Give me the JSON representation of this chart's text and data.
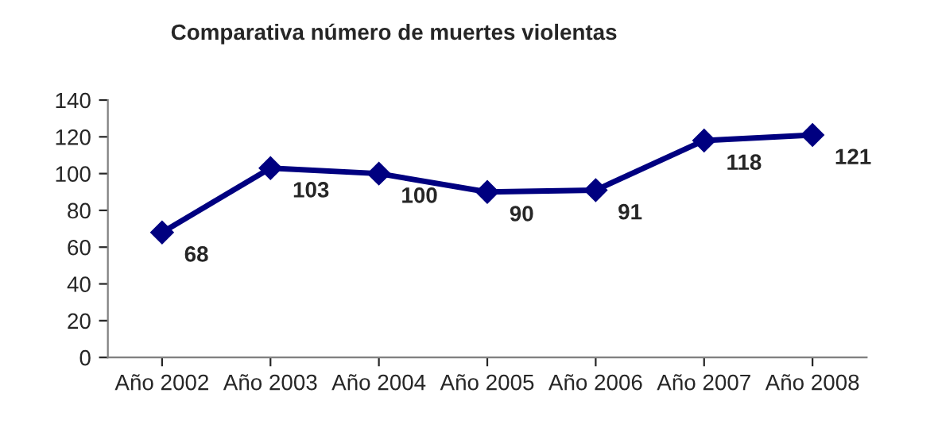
{
  "chart_data": {
    "type": "line",
    "title": "Comparativa número de muertes violentas",
    "categories": [
      "Año 2002",
      "Año 2003",
      "Año 2004",
      "Año 2005",
      "Año 2006",
      "Año 2007",
      "Año 2008"
    ],
    "series": [
      {
        "color": "#000080",
        "values": [
          68,
          103,
          100,
          90,
          91,
          118,
          121
        ]
      }
    ],
    "ylim": [
      0,
      140
    ],
    "yticks": [
      0,
      20,
      40,
      60,
      80,
      100,
      120,
      140
    ],
    "data_labels": true,
    "marker": "diamond",
    "line_style": "solid",
    "grid": false,
    "legend": false
  }
}
